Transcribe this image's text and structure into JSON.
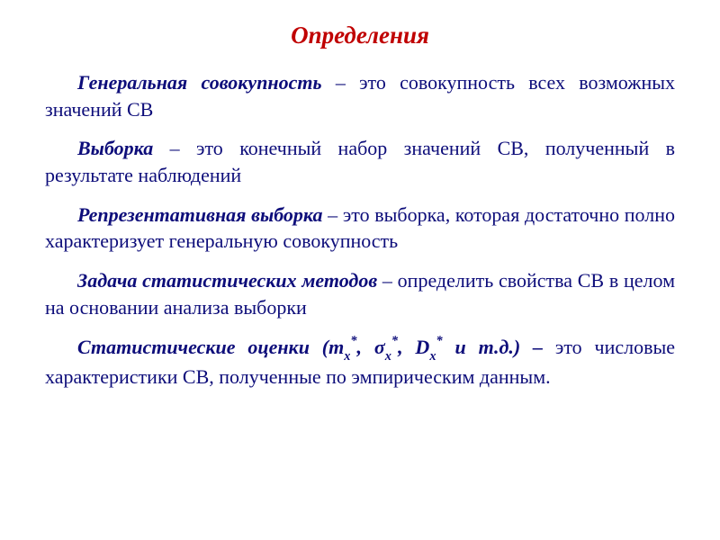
{
  "title": "Определения",
  "defs": [
    {
      "term": "Генеральная совокупность",
      "rest": " – это совокупность всех возможных значений СВ"
    },
    {
      "term": "Выборка",
      "rest": " – это конечный набор значений СВ, полученный в результате наблюдений"
    },
    {
      "term": "Репрезентативная выборка",
      "rest": " – это выборка, которая достаточно полно характеризует генеральную совокупность"
    },
    {
      "term": "Задача статистических методов",
      "rest": " – определить свойства СВ в целом на основании анализа выборки"
    }
  ],
  "stat": {
    "term": "Статистические оценки  (m",
    "sub1": "x",
    "sup1": "*",
    "mid1": ", σ",
    "sub2": "x",
    "sup2": "*",
    "mid2": ", D",
    "sub3": "x",
    "sup3": "*",
    "mid3": " и т.д.) – ",
    "rest": "это числовые характеристики СВ, полученные по эмпирическим данным."
  },
  "colors": {
    "title": "#c00000",
    "body": "#0d0d7a",
    "background": "#ffffff"
  },
  "fonts": {
    "family": "Times New Roman",
    "title_size_pt": 20,
    "body_size_pt": 16
  }
}
